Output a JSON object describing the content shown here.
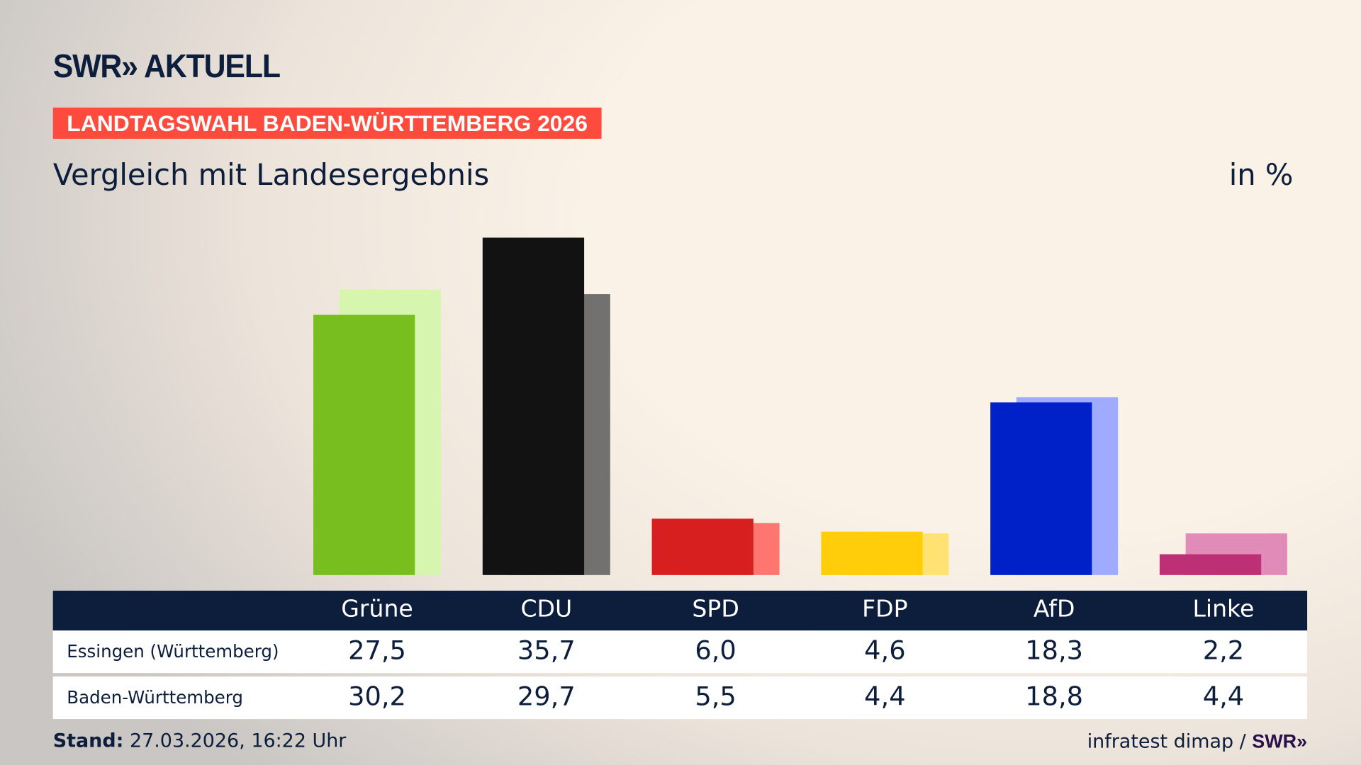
{
  "header": {
    "logo": "SWR» AKTUELL",
    "kicker": "LANDTAGSWAHL BADEN-WÜRTTEMBERG 2026",
    "subtitle": "Vergleich mit Landesergebnis",
    "unit": "in %"
  },
  "chart_data": {
    "type": "bar",
    "title": "Vergleich mit Landesergebnis",
    "unit": "in %",
    "categories": [
      "Grüne",
      "CDU",
      "SPD",
      "FDP",
      "AfD",
      "Linke"
    ],
    "series": [
      {
        "name": "Essingen (Württemberg)",
        "values": [
          27.5,
          35.7,
          6.0,
          4.6,
          18.3,
          2.2
        ],
        "labels": [
          "27,5",
          "35,7",
          "6,0",
          "4,6",
          "18,3",
          "2,2"
        ],
        "colors": [
          "#78be1e",
          "#121212",
          "#d71f1f",
          "#ffcd0a",
          "#0021c8",
          "#be3075"
        ]
      },
      {
        "name": "Baden-Württemberg",
        "values": [
          30.2,
          29.7,
          5.5,
          4.4,
          18.8,
          4.4
        ],
        "labels": [
          "30,2",
          "29,7",
          "5,5",
          "4,4",
          "18,8",
          "4,4"
        ],
        "colors": [
          "#d6f5ae",
          "#72716f",
          "#ff7670",
          "#ffe272",
          "#9eabff",
          "#e08bb8"
        ]
      }
    ],
    "ylim": [
      0,
      36
    ]
  },
  "footer": {
    "stand_label": "Stand:",
    "stand_value": " 27.03.2026, 16:22 Uhr",
    "source": "infratest dimap / ",
    "source_brand": "SWR»"
  }
}
